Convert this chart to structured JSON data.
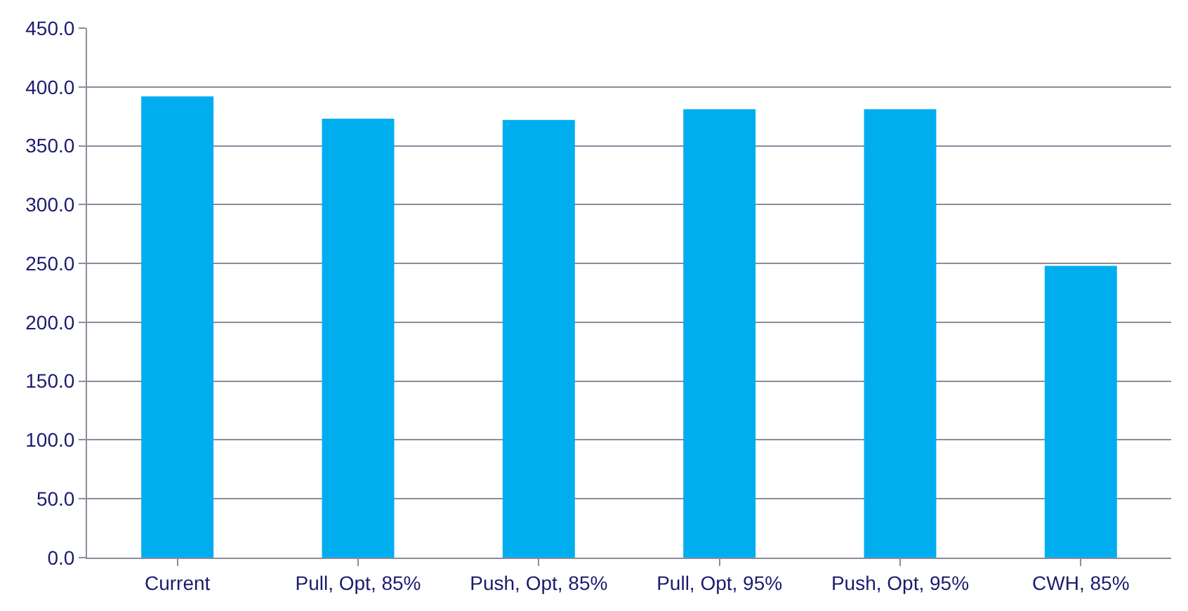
{
  "chart_data": {
    "type": "bar",
    "categories": [
      "Current",
      "Pull, Opt, 85%",
      "Push, Opt, 85%",
      "Pull, Opt, 95%",
      "Push, Opt, 95%",
      "CWH, 85%"
    ],
    "values": [
      392,
      373,
      372,
      381,
      381,
      248
    ],
    "color": "#00aeef",
    "ylim": [
      0,
      450
    ],
    "yticks": [
      {
        "value": 0,
        "label": "0.0"
      },
      {
        "value": 50,
        "label": "50.0"
      },
      {
        "value": 100,
        "label": "100.0"
      },
      {
        "value": 150,
        "label": "150.0"
      },
      {
        "value": 200,
        "label": "200.0"
      },
      {
        "value": 250,
        "label": "250.0"
      },
      {
        "value": 300,
        "label": "300.0"
      },
      {
        "value": 350,
        "label": "350.0"
      },
      {
        "value": 400,
        "label": "400.0"
      },
      {
        "value": 450,
        "label": "450.0"
      }
    ],
    "grid": "y"
  }
}
